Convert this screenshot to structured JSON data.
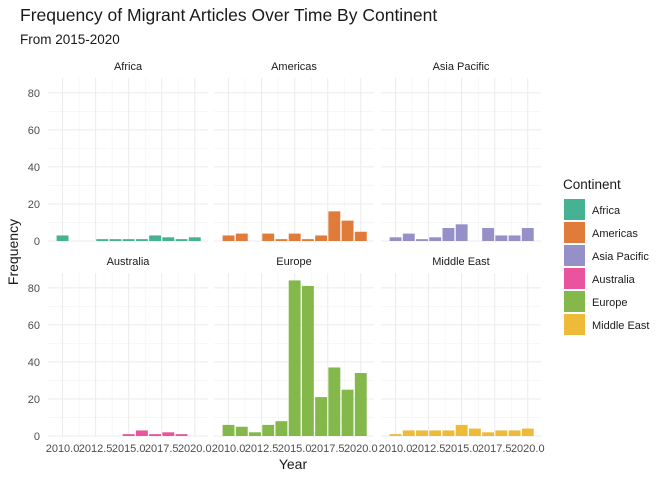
{
  "chart_data": {
    "type": "bar",
    "title": "Frequency of Migrant Articles Over Time By Continent",
    "subtitle": "From 2015-2020",
    "xlabel": "Year",
    "ylabel": "Frequency",
    "ylim": [
      0,
      88
    ],
    "xlim": [
      2008.9,
      2021.0
    ],
    "y_ticks": [
      0,
      20,
      40,
      60,
      80
    ],
    "y_tick_labels": [
      "0",
      "20",
      "40",
      "60",
      "80"
    ],
    "x_ticks": [
      2010.0,
      2012.5,
      2015.0,
      2017.5,
      2020.0
    ],
    "x_tick_labels": [
      "2010.0",
      "2012.5",
      "2015.0",
      "2017.5",
      "2020.0"
    ],
    "grid": true,
    "legend": {
      "title": "Continent",
      "position": "right"
    },
    "facets": [
      {
        "name": "Africa",
        "color": "#45B293",
        "x": [
          2010,
          2011,
          2012,
          2013,
          2014,
          2015,
          2016,
          2017,
          2018,
          2019,
          2020
        ],
        "values": [
          3,
          0,
          0,
          1,
          1,
          1,
          1,
          3,
          2,
          1,
          2
        ]
      },
      {
        "name": "Americas",
        "color": "#E07B39",
        "x": [
          2010,
          2011,
          2012,
          2013,
          2014,
          2015,
          2016,
          2017,
          2018,
          2019,
          2020
        ],
        "values": [
          3,
          4,
          0,
          4,
          1,
          4,
          1,
          3,
          16,
          11,
          5
        ]
      },
      {
        "name": "Asia Pacific",
        "color": "#9590C8",
        "x": [
          2010,
          2011,
          2012,
          2013,
          2014,
          2015,
          2016,
          2017,
          2018,
          2019,
          2020
        ],
        "values": [
          2,
          4,
          1,
          2,
          7,
          9,
          0,
          7,
          3,
          3,
          7
        ]
      },
      {
        "name": "Australia",
        "color": "#EA539D",
        "x": [
          2010,
          2011,
          2012,
          2013,
          2014,
          2015,
          2016,
          2017,
          2018,
          2019,
          2020
        ],
        "values": [
          0,
          0,
          0,
          0,
          0,
          1,
          3,
          1,
          2,
          1,
          0
        ]
      },
      {
        "name": "Europe",
        "color": "#84B84A",
        "x": [
          2010,
          2011,
          2012,
          2013,
          2014,
          2015,
          2016,
          2017,
          2018,
          2019,
          2020
        ],
        "values": [
          6,
          5,
          2,
          6,
          8,
          84,
          81,
          21,
          37,
          25,
          34
        ]
      },
      {
        "name": "Middle East",
        "color": "#EDBB38",
        "x": [
          2010,
          2011,
          2012,
          2013,
          2014,
          2015,
          2016,
          2017,
          2018,
          2019,
          2020
        ],
        "values": [
          1,
          3,
          3,
          3,
          3,
          6,
          4,
          2,
          3,
          3,
          4
        ]
      }
    ]
  }
}
